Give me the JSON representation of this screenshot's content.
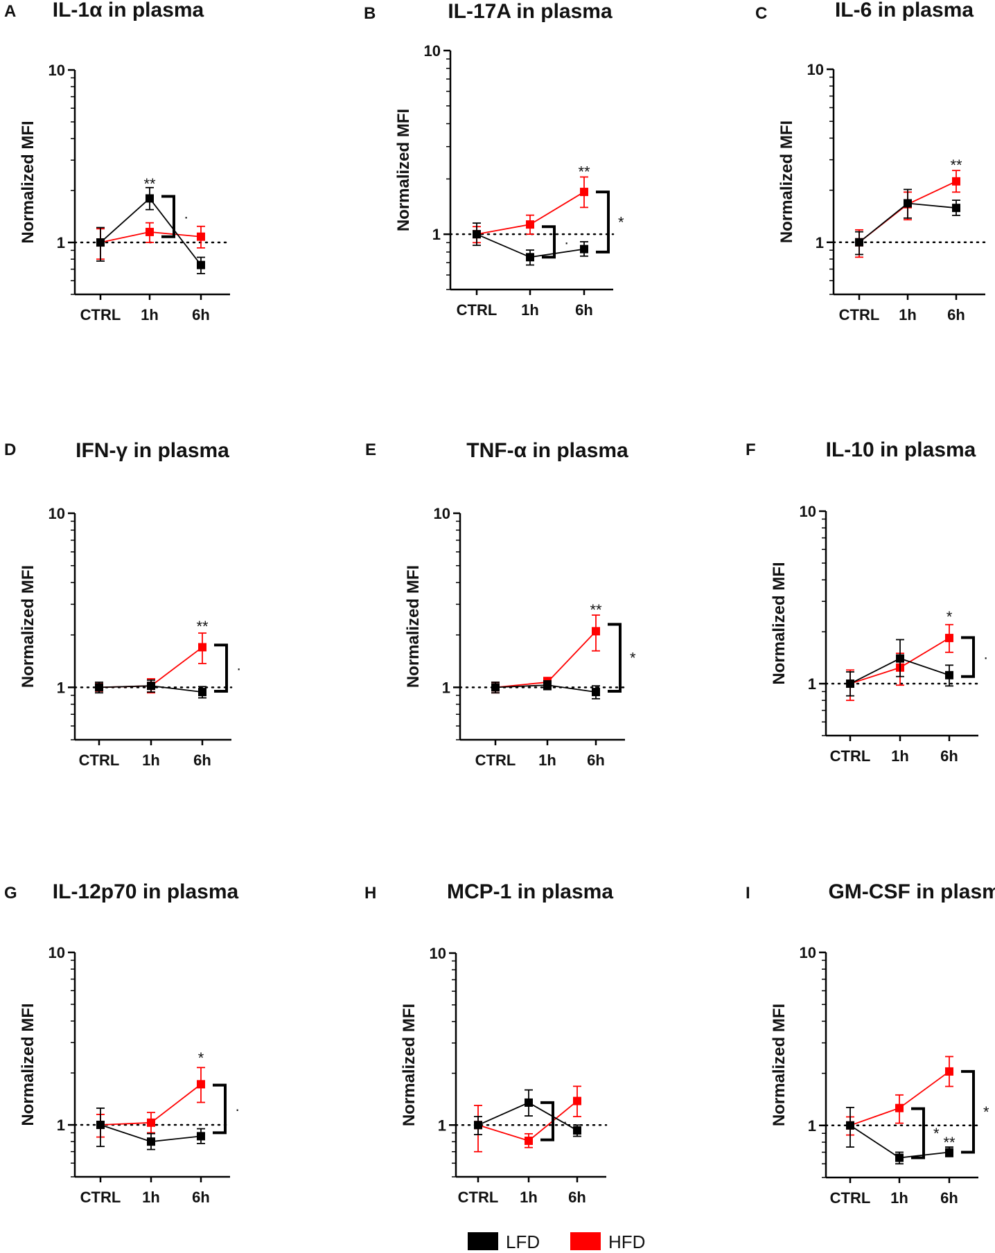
{
  "legend": [
    {
      "name": "LFD",
      "color": "#000000"
    },
    {
      "name": "HFD",
      "color": "#ff0000"
    }
  ],
  "chart_data": [
    {
      "letter": "A",
      "type": "line",
      "title": "IL-1α in plasma",
      "xlabel": "",
      "ylabel": "Normalized MFI",
      "yscale": "log",
      "ylim": [
        0.5,
        10
      ],
      "yticks": [
        "1",
        "10"
      ],
      "categories": [
        "CTRL",
        "1h",
        "6h"
      ],
      "reference_line": 1,
      "series": [
        {
          "name": "LFD",
          "values": [
            1.0,
            1.8,
            0.74
          ],
          "err_low": [
            0.78,
            1.55,
            0.66
          ],
          "err_high": [
            1.22,
            2.08,
            0.82
          ]
        },
        {
          "name": "HFD",
          "values": [
            1.0,
            1.15,
            1.08
          ],
          "err_low": [
            0.8,
            1.0,
            0.93
          ],
          "err_high": [
            1.2,
            1.3,
            1.24
          ]
        }
      ],
      "annotations": [
        {
          "text": "**",
          "category": "1h",
          "value": 2.2
        }
      ],
      "brackets": [
        {
          "between": "1h",
          "from": 1.85,
          "to": 1.08,
          "label": "·"
        }
      ]
    },
    {
      "letter": "B",
      "type": "line",
      "title": "IL-17A in plasma",
      "xlabel": "",
      "ylabel": "Normalized MFI",
      "yscale": "log",
      "ylim": [
        0.5,
        10
      ],
      "yticks": [
        "1",
        "10"
      ],
      "categories": [
        "CTRL",
        "1h",
        "6h"
      ],
      "reference_line": 1,
      "series": [
        {
          "name": "LFD",
          "values": [
            1.0,
            0.75,
            0.83
          ],
          "err_low": [
            0.87,
            0.68,
            0.76
          ],
          "err_high": [
            1.15,
            0.82,
            0.91
          ]
        },
        {
          "name": "HFD",
          "values": [
            1.0,
            1.13,
            1.7
          ],
          "err_low": [
            0.9,
            1.0,
            1.4
          ],
          "err_high": [
            1.1,
            1.27,
            2.05
          ]
        }
      ],
      "annotations": [
        {
          "text": "**",
          "category": "6h",
          "value": 2.2
        }
      ],
      "brackets": [
        {
          "between": "1h",
          "from": 1.1,
          "to": 0.75,
          "label": "·"
        },
        {
          "between": "6h",
          "from": 1.7,
          "to": 0.8,
          "label": "*"
        }
      ]
    },
    {
      "letter": "C",
      "type": "line",
      "title": "IL-6 in plasma",
      "xlabel": "",
      "ylabel": "Normalized MFI",
      "yscale": "log",
      "ylim": [
        0.5,
        10
      ],
      "yticks": [
        "1",
        "10"
      ],
      "categories": [
        "CTRL",
        "1h",
        "6h"
      ],
      "reference_line": 1,
      "series": [
        {
          "name": "LFD",
          "values": [
            1.0,
            1.68,
            1.58
          ],
          "err_low": [
            0.85,
            1.38,
            1.43
          ],
          "err_high": [
            1.15,
            2.02,
            1.75
          ]
        },
        {
          "name": "HFD",
          "values": [
            1.0,
            1.66,
            2.25
          ],
          "err_low": [
            0.82,
            1.35,
            1.95
          ],
          "err_high": [
            1.18,
            1.95,
            2.6
          ]
        }
      ],
      "annotations": [
        {
          "text": "**",
          "category": "6h",
          "value": 2.8
        }
      ],
      "brackets": []
    },
    {
      "letter": "D",
      "type": "line",
      "title": "IFN-γ in plasma",
      "xlabel": "",
      "ylabel": "Normalized MFI",
      "yscale": "log",
      "ylim": [
        0.5,
        10
      ],
      "yticks": [
        "1",
        "10"
      ],
      "categories": [
        "CTRL",
        "1h",
        "6h"
      ],
      "reference_line": 1,
      "series": [
        {
          "name": "LFD",
          "values": [
            1.0,
            1.02,
            0.94
          ],
          "err_low": [
            0.93,
            0.94,
            0.87
          ],
          "err_high": [
            1.07,
            1.1,
            1.01
          ]
        },
        {
          "name": "HFD",
          "values": [
            1.0,
            1.02,
            1.7
          ],
          "err_low": [
            0.95,
            0.93,
            1.37
          ],
          "err_high": [
            1.05,
            1.12,
            2.05
          ]
        }
      ],
      "annotations": [
        {
          "text": "**",
          "category": "6h",
          "value": 2.25
        }
      ],
      "brackets": [
        {
          "between": "6h",
          "from": 1.75,
          "to": 0.95,
          "label": "·"
        }
      ]
    },
    {
      "letter": "E",
      "type": "line",
      "title": "TNF-α in plasma",
      "xlabel": "",
      "ylabel": "Normalized MFI",
      "yscale": "log",
      "ylim": [
        0.5,
        10
      ],
      "yticks": [
        "1",
        "10"
      ],
      "categories": [
        "CTRL",
        "1h",
        "6h"
      ],
      "reference_line": 1,
      "series": [
        {
          "name": "LFD",
          "values": [
            1.0,
            1.03,
            0.94
          ],
          "err_low": [
            0.93,
            0.97,
            0.86
          ],
          "err_high": [
            1.07,
            1.09,
            1.02
          ]
        },
        {
          "name": "HFD",
          "values": [
            1.0,
            1.07,
            2.1
          ],
          "err_low": [
            0.93,
            1.0,
            1.62
          ],
          "err_high": [
            1.07,
            1.14,
            2.6
          ]
        }
      ],
      "annotations": [
        {
          "text": "**",
          "category": "6h",
          "value": 2.8
        }
      ],
      "brackets": [
        {
          "between": "6h",
          "from": 2.3,
          "to": 0.95,
          "label": "*"
        }
      ]
    },
    {
      "letter": "F",
      "type": "line",
      "title": "IL-10 in plasma",
      "xlabel": "",
      "ylabel": "Normalized MFI",
      "yscale": "log",
      "ylim": [
        0.5,
        10
      ],
      "yticks": [
        "1",
        "10"
      ],
      "categories": [
        "CTRL",
        "1h",
        "6h"
      ],
      "reference_line": 1,
      "series": [
        {
          "name": "LFD",
          "values": [
            1.0,
            1.4,
            1.12
          ],
          "err_low": [
            0.85,
            1.1,
            0.97
          ],
          "err_high": [
            1.17,
            1.8,
            1.28
          ]
        },
        {
          "name": "HFD",
          "values": [
            1.0,
            1.24,
            1.84
          ],
          "err_low": [
            0.8,
            0.98,
            1.52
          ],
          "err_high": [
            1.2,
            1.5,
            2.2
          ]
        }
      ],
      "annotations": [
        {
          "text": "*",
          "category": "6h",
          "value": 2.45
        }
      ],
      "brackets": [
        {
          "between": "6h",
          "from": 1.85,
          "to": 1.1,
          "label": "·"
        }
      ]
    },
    {
      "letter": "G",
      "type": "line",
      "title": "IL-12p70 in plasma",
      "xlabel": "",
      "ylabel": "Normalized MFI",
      "yscale": "log",
      "ylim": [
        0.5,
        10
      ],
      "yticks": [
        "1",
        "10"
      ],
      "categories": [
        "CTRL",
        "1h",
        "6h"
      ],
      "reference_line": 1,
      "series": [
        {
          "name": "LFD",
          "values": [
            1.0,
            0.8,
            0.86
          ],
          "err_low": [
            0.75,
            0.72,
            0.78
          ],
          "err_high": [
            1.25,
            0.89,
            0.95
          ]
        },
        {
          "name": "HFD",
          "values": [
            1.0,
            1.03,
            1.72
          ],
          "err_low": [
            0.85,
            0.9,
            1.35
          ],
          "err_high": [
            1.15,
            1.18,
            2.15
          ]
        }
      ],
      "annotations": [
        {
          "text": "*",
          "category": "6h",
          "value": 2.45
        }
      ],
      "brackets": [
        {
          "between": "6h",
          "from": 1.7,
          "to": 0.9,
          "label": "·"
        }
      ]
    },
    {
      "letter": "H",
      "type": "line",
      "title": "MCP-1 in plasma",
      "xlabel": "",
      "ylabel": "Normalized MFI",
      "yscale": "log",
      "ylim": [
        0.5,
        10
      ],
      "yticks": [
        "1",
        "10"
      ],
      "categories": [
        "CTRL",
        "1h",
        "6h"
      ],
      "reference_line": 1,
      "series": [
        {
          "name": "LFD",
          "values": [
            1.0,
            1.35,
            0.93
          ],
          "err_low": [
            0.88,
            1.13,
            0.86
          ],
          "err_high": [
            1.12,
            1.6,
            1.0
          ]
        },
        {
          "name": "HFD",
          "values": [
            1.0,
            0.81,
            1.38
          ],
          "err_low": [
            0.7,
            0.74,
            1.12
          ],
          "err_high": [
            1.3,
            0.89,
            1.68
          ]
        }
      ],
      "annotations": [],
      "brackets": [
        {
          "between": "1h",
          "from": 1.35,
          "to": 0.82,
          "label": "·"
        }
      ]
    },
    {
      "letter": "I",
      "type": "line",
      "title": "GM-CSF in plasma",
      "xlabel": "",
      "ylabel": "Normalized MFI",
      "yscale": "log",
      "ylim": [
        0.5,
        10
      ],
      "yticks": [
        "1",
        "10"
      ],
      "categories": [
        "CTRL",
        "1h",
        "6h"
      ],
      "reference_line": 1,
      "series": [
        {
          "name": "LFD",
          "values": [
            1.0,
            0.65,
            0.7
          ],
          "err_low": [
            0.75,
            0.6,
            0.66
          ],
          "err_high": [
            1.27,
            0.7,
            0.75
          ]
        },
        {
          "name": "HFD",
          "values": [
            1.0,
            1.26,
            2.05
          ],
          "err_low": [
            0.88,
            1.03,
            1.68
          ],
          "err_high": [
            1.12,
            1.5,
            2.5
          ]
        }
      ],
      "annotations": [
        {
          "text": "**",
          "category": "6h",
          "value": 0.8
        }
      ],
      "brackets": [
        {
          "between": "1h",
          "from": 1.25,
          "to": 0.65,
          "label": "*"
        },
        {
          "between": "6h",
          "from": 2.05,
          "to": 0.7,
          "label": "*"
        }
      ]
    }
  ]
}
